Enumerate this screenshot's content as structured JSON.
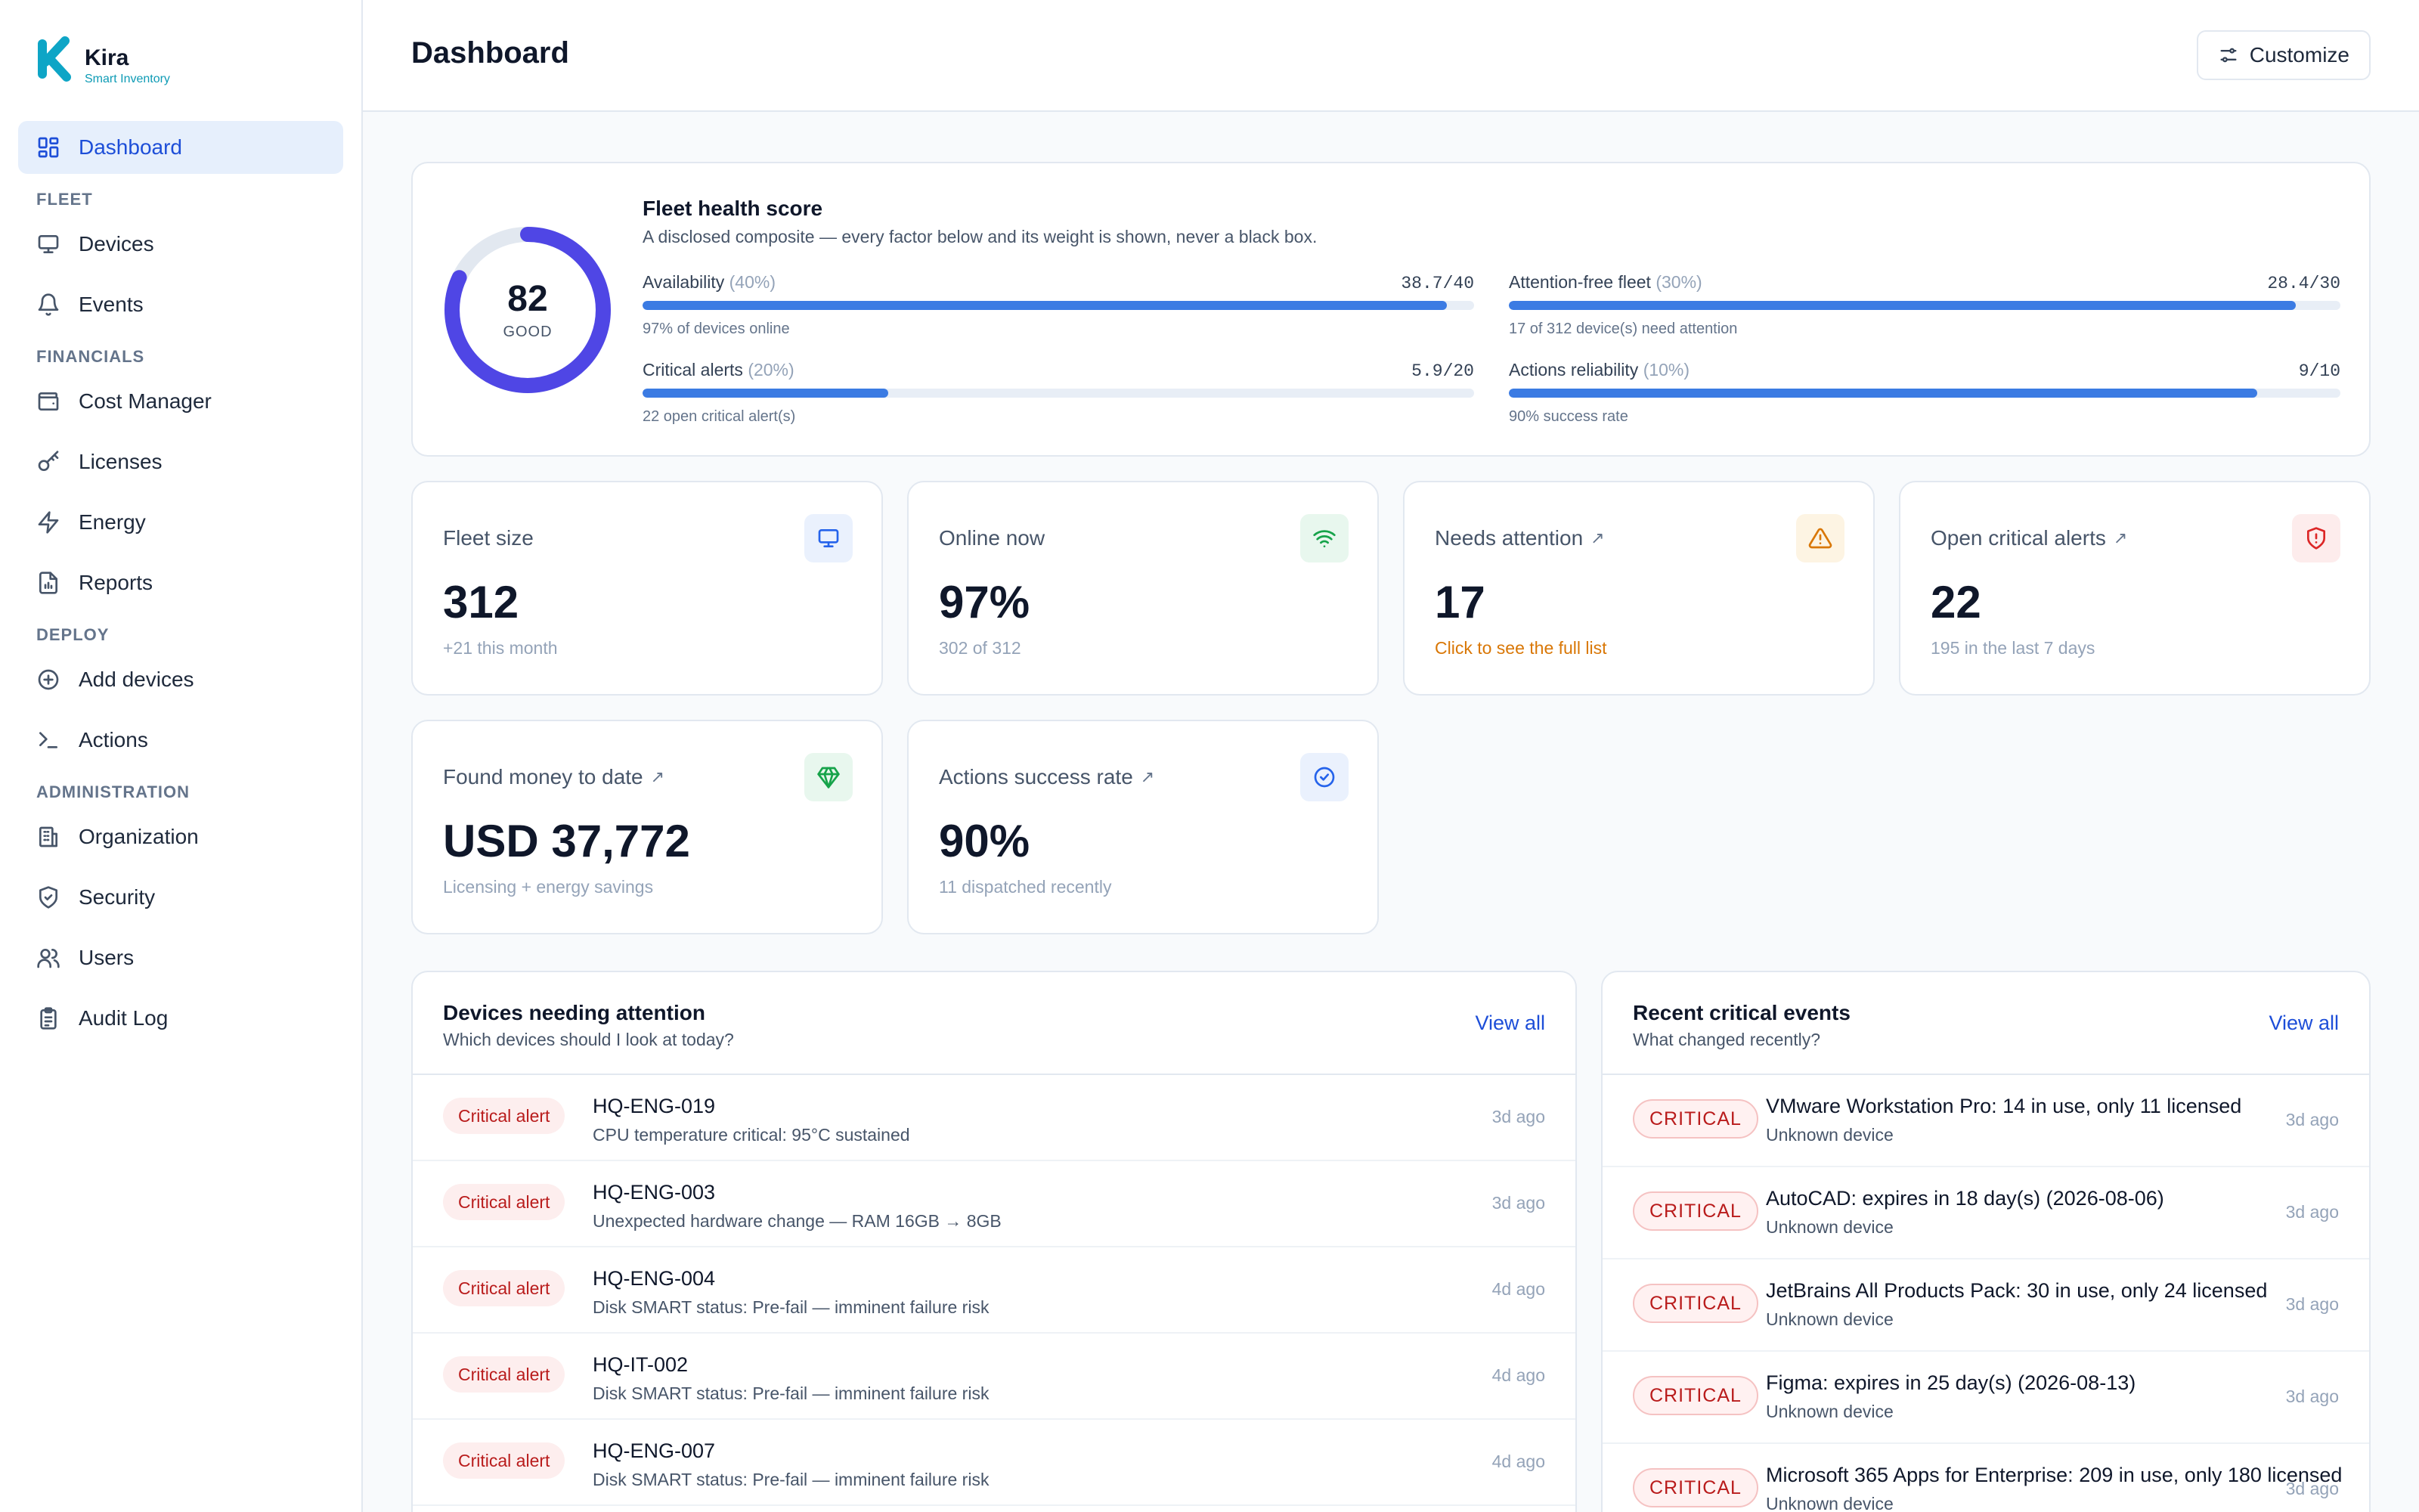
{
  "brand": {
    "name": "Kira",
    "tagline": "Smart Inventory",
    "color": "#0ea5c6"
  },
  "sidebar": {
    "dashboard": "Dashboard",
    "sections": {
      "fleet": "FLEET",
      "financials": "FINANCIALS",
      "deploy": "DEPLOY",
      "administration": "ADMINISTRATION"
    },
    "items": {
      "devices": "Devices",
      "events": "Events",
      "cost_manager": "Cost Manager",
      "licenses": "Licenses",
      "energy": "Energy",
      "reports": "Reports",
      "add_devices": "Add devices",
      "actions": "Actions",
      "organization": "Organization",
      "security": "Security",
      "users": "Users",
      "audit_log": "Audit Log"
    }
  },
  "header": {
    "title": "Dashboard",
    "customize_label": "Customize"
  },
  "health": {
    "title": "Fleet health score",
    "subtitle": "A disclosed composite — every factor below and its weight is shown, never a black box.",
    "score": "82",
    "score_value": 82,
    "grade": "GOOD",
    "factors": [
      {
        "name": "Availability",
        "weight": "(40%)",
        "score": "38.7/40",
        "fraction": 0.9675,
        "note": "97% of devices online"
      },
      {
        "name": "Attention-free fleet",
        "weight": "(30%)",
        "score": "28.4/30",
        "fraction": 0.9467,
        "note": "17 of 312 device(s) need attention"
      },
      {
        "name": "Critical alerts",
        "weight": "(20%)",
        "score": "5.9/20",
        "fraction": 0.295,
        "note": "22 open critical alert(s)"
      },
      {
        "name": "Actions reliability",
        "weight": "(10%)",
        "score": "9/10",
        "fraction": 0.9,
        "note": "90% success rate"
      }
    ],
    "colors": {
      "ring": "#4f46e5",
      "track": "#e2e8f0",
      "bar": "#3b7be3"
    }
  },
  "stats": [
    {
      "title": "Fleet size",
      "arrow": "",
      "value": "312",
      "sub": "+21 this month",
      "icon": "monitor-icon",
      "icon_color": "#2563eb",
      "icon_bg": "#eaf1fd"
    },
    {
      "title": "Online now",
      "arrow": "",
      "value": "97%",
      "sub": "302 of 312",
      "icon": "wifi-icon",
      "icon_color": "#16a34a",
      "icon_bg": "#e8f7ee"
    },
    {
      "title": "Needs attention",
      "arrow": "↗",
      "value": "17",
      "sub": "Click to see the full list",
      "icon": "warning-icon",
      "icon_color": "#d97706",
      "icon_bg": "#fdf4e3"
    },
    {
      "title": "Open critical alerts",
      "arrow": "↗",
      "value": "22",
      "sub": "195 in the last 7 days",
      "icon": "shield-alert-icon",
      "icon_color": "#dc2626",
      "icon_bg": "#fdecec"
    },
    {
      "title": "Found money to date",
      "arrow": "↗",
      "value": "USD 37,772",
      "sub": "Licensing + energy savings",
      "icon": "gem-icon",
      "icon_color": "#16a34a",
      "icon_bg": "#e8f7ee"
    },
    {
      "title": "Actions success rate",
      "arrow": "↗",
      "value": "90%",
      "sub": "11 dispatched recently",
      "icon": "check-circle-icon",
      "icon_color": "#2563eb",
      "icon_bg": "#eaf1fd"
    }
  ],
  "attention": {
    "title": "Devices needing attention",
    "subtitle": "Which devices should I look at today?",
    "view_all": "View all",
    "rows": [
      {
        "badge": "Critical alert",
        "device": "HQ-ENG-019",
        "detail": "CPU temperature critical: 95°C sustained",
        "time": "3d ago"
      },
      {
        "badge": "Critical alert",
        "device": "HQ-ENG-003",
        "detail": "Unexpected hardware change — RAM 16GB → 8GB",
        "time": "3d ago"
      },
      {
        "badge": "Critical alert",
        "device": "HQ-ENG-004",
        "detail": "Disk SMART status: Pre-fail — imminent failure risk",
        "time": "4d ago"
      },
      {
        "badge": "Critical alert",
        "device": "HQ-IT-002",
        "detail": "Disk SMART status: Pre-fail — imminent failure risk",
        "time": "4d ago"
      },
      {
        "badge": "Critical alert",
        "device": "HQ-ENG-007",
        "detail": "Disk SMART status: Pre-fail — imminent failure risk",
        "time": "4d ago"
      }
    ]
  },
  "events": {
    "title": "Recent critical events",
    "subtitle": "What changed recently?",
    "view_all": "View all",
    "rows": [
      {
        "badge": "CRITICAL",
        "title": "VMware Workstation Pro: 14 in use, only 11 licensed",
        "device": "Unknown device",
        "time": "3d ago"
      },
      {
        "badge": "CRITICAL",
        "title": "AutoCAD: expires in 18 day(s) (2026-08-06)",
        "device": "Unknown device",
        "time": "3d ago"
      },
      {
        "badge": "CRITICAL",
        "title": "JetBrains All Products Pack: 30 in use, only 24 licensed",
        "device": "Unknown device",
        "time": "3d ago"
      },
      {
        "badge": "CRITICAL",
        "title": "Figma: expires in 25 day(s) (2026-08-13)",
        "device": "Unknown device",
        "time": "3d ago"
      },
      {
        "badge": "CRITICAL",
        "title": "Microsoft 365 Apps for Enterprise: 209 in use, only 180 licensed",
        "device": "Unknown device",
        "time": "3d ago"
      }
    ]
  }
}
